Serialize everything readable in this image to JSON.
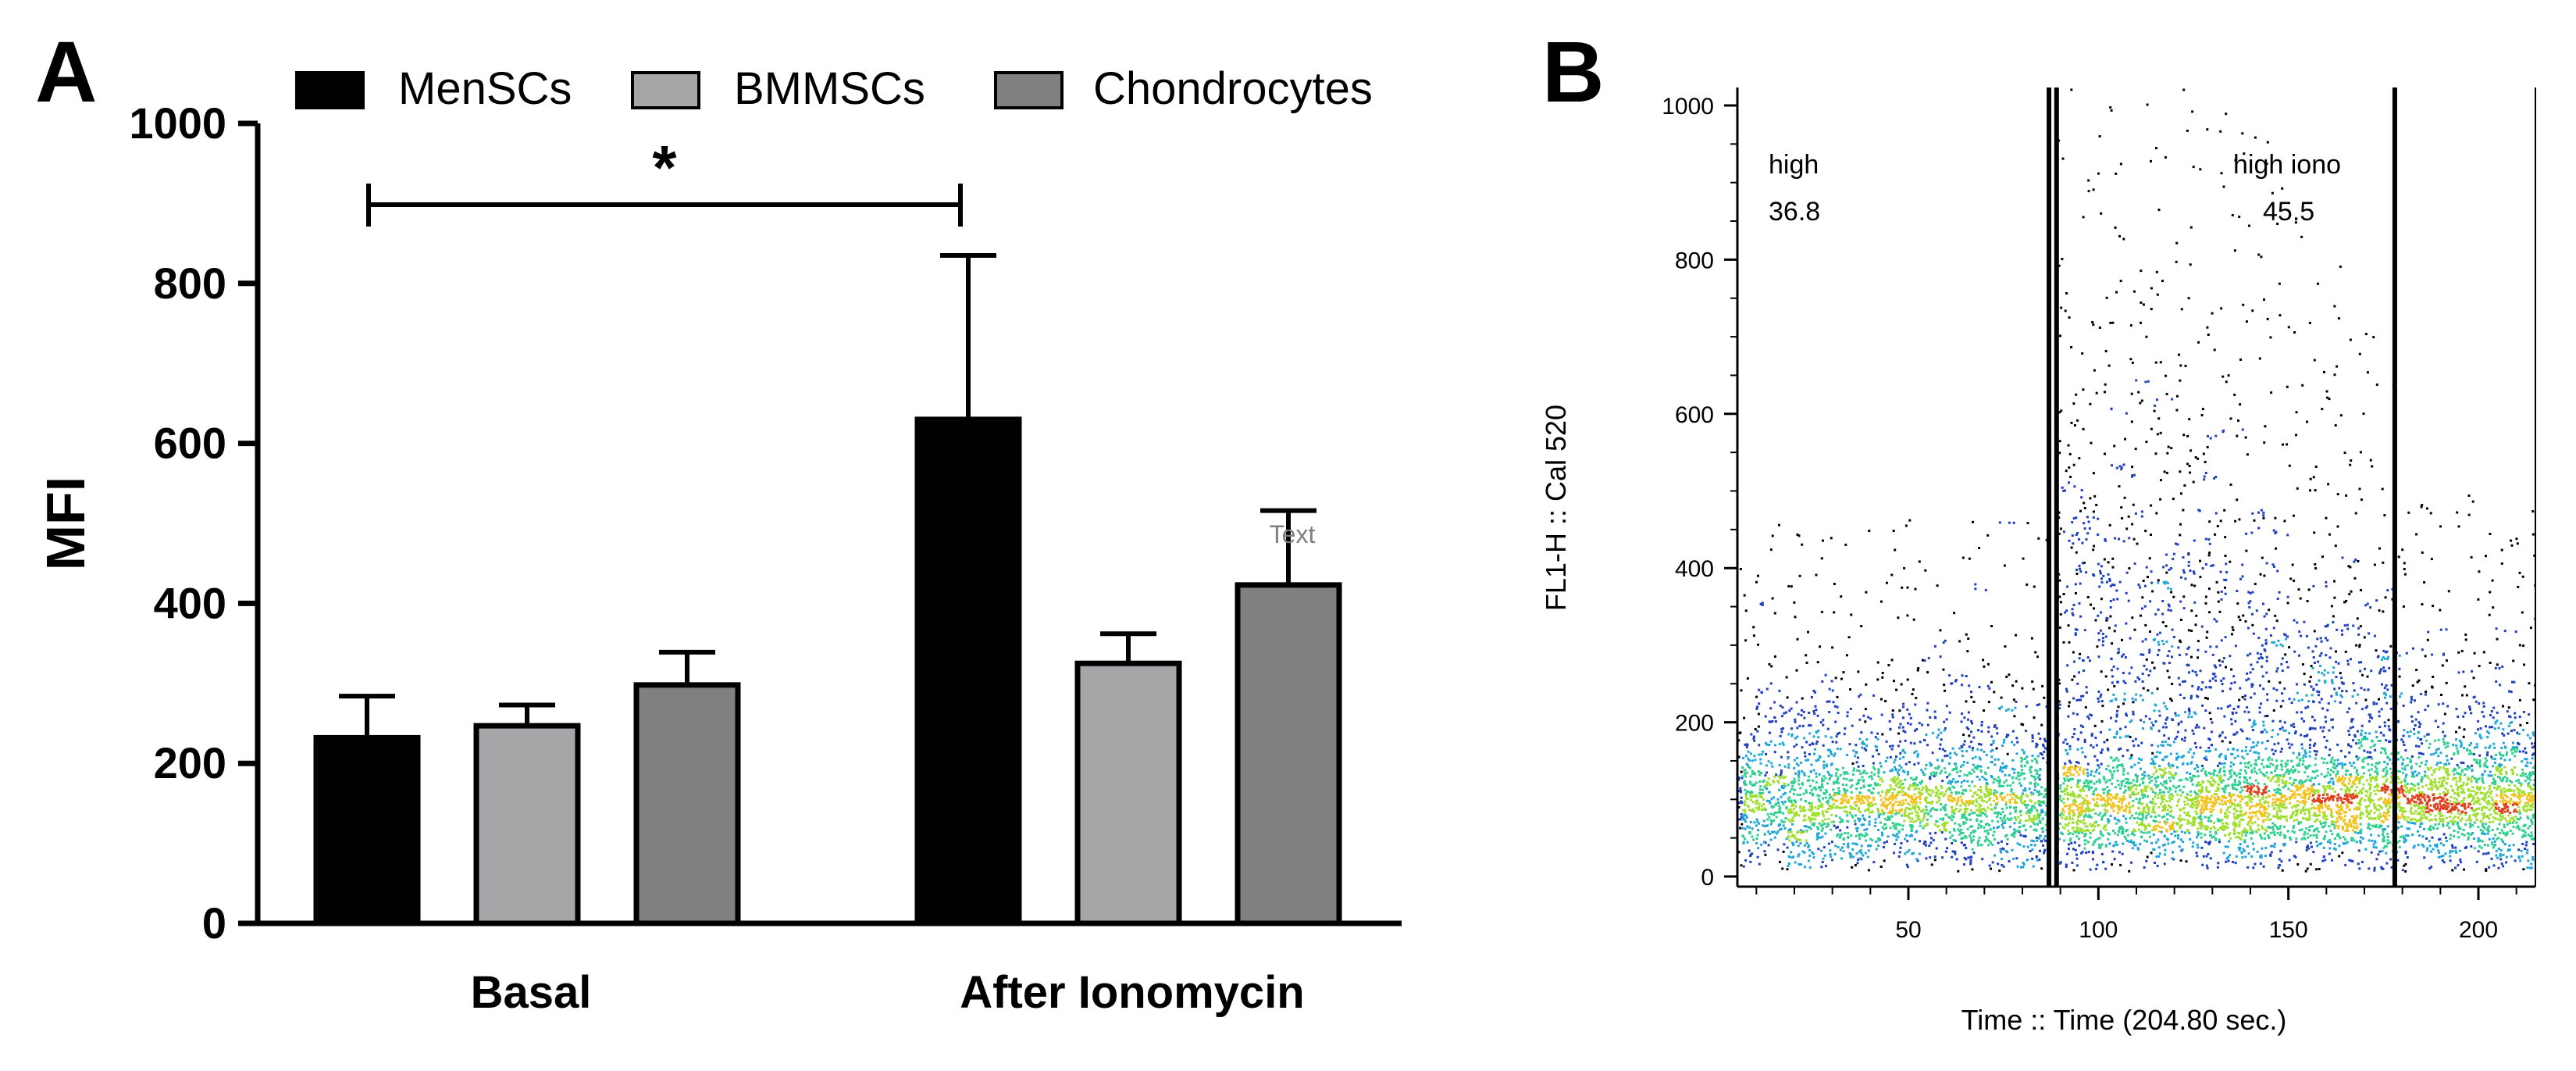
{
  "panel_a": {
    "letter": "A",
    "significance_marker": "*",
    "ghost_label": "Text"
  },
  "panel_b": {
    "letter": "B"
  },
  "chart_data": [
    {
      "type": "bar",
      "title": "",
      "xlabel": "",
      "ylabel": "MFI",
      "ylim": [
        0,
        1000
      ],
      "yticks": [
        "0",
        "200",
        "400",
        "600",
        "800",
        "1000"
      ],
      "categories": [
        "Basal",
        "After Ionomycin"
      ],
      "legend": [
        "MenSCs",
        "BMMSCs",
        "Chondrocytes"
      ],
      "legend_position": "top",
      "series": [
        {
          "name": "MenSCs",
          "color": "#000000",
          "values": [
            232,
            630
          ],
          "errors": [
            52,
            205
          ]
        },
        {
          "name": "BMMSCs",
          "color": "#a6a6a8",
          "values": [
            247,
            325
          ],
          "errors": [
            26,
            37
          ]
        },
        {
          "name": "Chondrocytes",
          "color": "#808080",
          "values": [
            298,
            423
          ],
          "errors": [
            41,
            93
          ]
        }
      ],
      "significance": {
        "marker": "*",
        "between": [
          "Basal MenSCs",
          "After Ionomycin MenSCs"
        ]
      }
    },
    {
      "type": "scatter",
      "title": "",
      "xlabel": "Time :: Time (204.80 sec.)",
      "ylabel": "FL1-H :: Cal 520",
      "xlim": [
        5,
        215
      ],
      "ylim": [
        0,
        1000
      ],
      "xticks": [
        "50",
        "100",
        "150",
        "200"
      ],
      "yticks": [
        "0",
        "200",
        "400",
        "600",
        "800",
        "1000"
      ],
      "colormap": "pseudocolor density (blue-cyan-green-yellow-red)",
      "gates": [
        {
          "name": "high",
          "value": "36.8",
          "x_range": [
            5,
            87
          ]
        },
        {
          "name": "high iono",
          "value": "45.5",
          "x_range": [
            89,
            178
          ]
        }
      ],
      "gate_boundaries_x": [
        87,
        89,
        178
      ],
      "density_profile": [
        {
          "time_range": [
            5,
            87
          ],
          "core_level": 80,
          "spread": 120
        },
        {
          "time_range": [
            89,
            178
          ],
          "core_level": 90,
          "spread": 300,
          "peak_time": 105
        },
        {
          "time_range": [
            178,
            215
          ],
          "core_level": 85,
          "spread": 130
        }
      ]
    }
  ]
}
